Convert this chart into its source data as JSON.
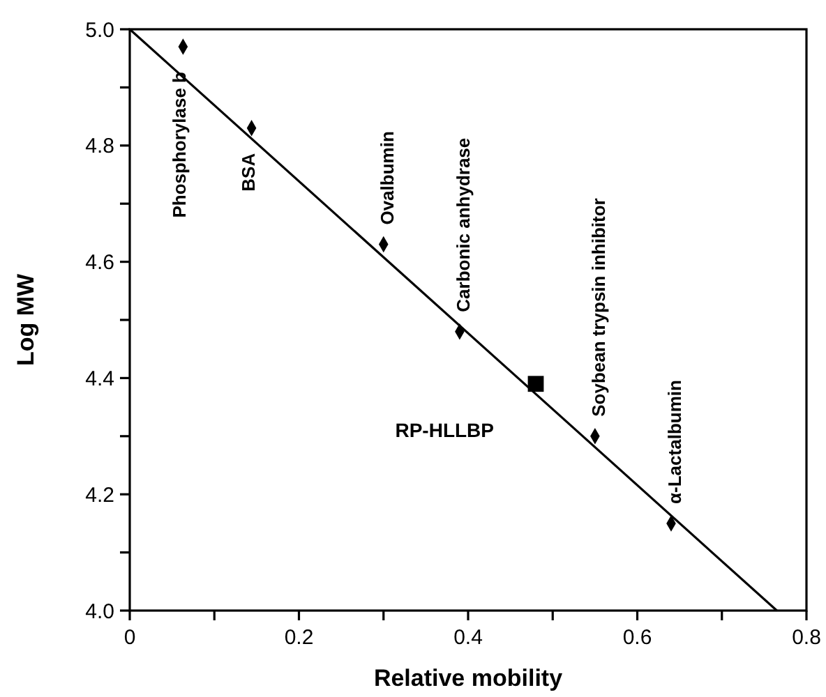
{
  "chart_data": {
    "type": "scatter",
    "xlabel": "Relative mobility",
    "ylabel": "Log MW",
    "xlim": [
      0,
      0.8
    ],
    "ylim": [
      4.0,
      5.0
    ],
    "xticks": [
      0,
      {
        "value": 0.1,
        "label": null
      },
      0.2,
      {
        "value": 0.3,
        "label": null
      },
      0.4,
      {
        "value": 0.5,
        "label": null
      },
      0.6,
      {
        "value": 0.7,
        "label": null
      },
      0.8
    ],
    "yticks": [
      {
        "value": 4.0,
        "label": "4.0"
      },
      {
        "value": 4.1,
        "label": null
      },
      4.2,
      {
        "value": 4.3,
        "label": null
      },
      4.4,
      {
        "value": 4.5,
        "label": null
      },
      4.6,
      {
        "value": 4.7,
        "label": null
      },
      4.8,
      {
        "value": 4.9,
        "label": null
      },
      {
        "value": 5.0,
        "label": "5.0"
      }
    ],
    "grid": false,
    "series": [
      {
        "marker": "diamond",
        "color": "#000000",
        "x": [
          0.063,
          0.144,
          0.3,
          0.39,
          0.55,
          0.64
        ],
        "values": [
          4.97,
          4.83,
          4.63,
          4.48,
          4.3,
          4.15
        ]
      },
      {
        "marker": "square",
        "color": "#000000",
        "x": [
          0.48
        ],
        "values": [
          4.39
        ]
      },
      {
        "type": "line",
        "marker": "none",
        "line_style": "solid",
        "color": "#000000",
        "x": [
          0,
          0.765
        ],
        "values": [
          5.0,
          4.0
        ]
      }
    ],
    "annotations": [
      {
        "text": "Phosphorylase b",
        "x": 0.063,
        "y": 4.97
      },
      {
        "text": "BSA",
        "x": 0.144,
        "y": 4.83
      },
      {
        "text": "Ovalbumin",
        "x": 0.3,
        "y": 4.63
      },
      {
        "text": "Carbonic anhydrase",
        "x": 0.39,
        "y": 4.48
      },
      {
        "text": "Soybean trypsin inhibitor",
        "x": 0.55,
        "y": 4.3
      },
      {
        "text": "α-Lactalbumin",
        "x": 0.64,
        "y": 4.15
      },
      {
        "text": "RP-HLLBP",
        "x": 0.48,
        "y": 4.39
      }
    ]
  }
}
